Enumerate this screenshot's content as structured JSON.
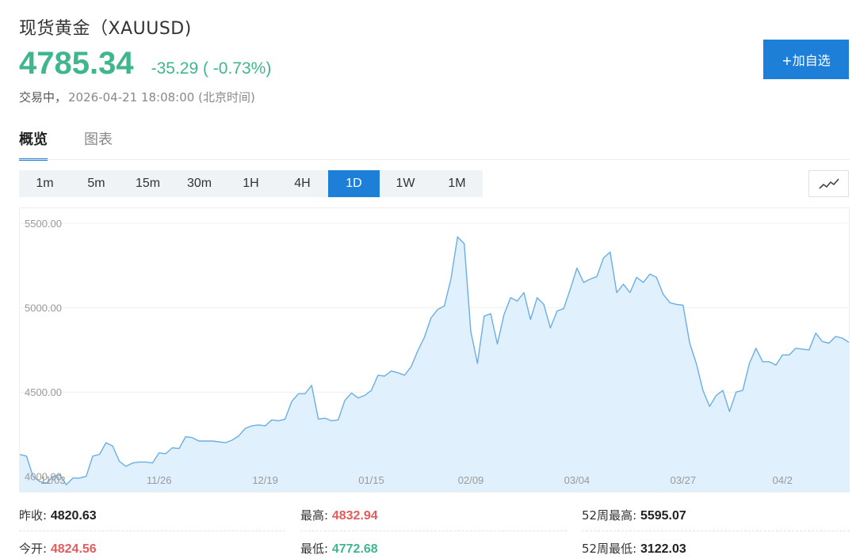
{
  "header": {
    "title": "现货黄金（XAUUSD)",
    "price": "4785.34",
    "change": "-35.29 ( -0.73%)",
    "status": "交易中，",
    "time": "2026-04-21 18:08:00 (北京时间)",
    "add_label": "+加自选"
  },
  "tabs": [
    {
      "label": "概览",
      "active": true
    },
    {
      "label": "图表",
      "active": false
    }
  ],
  "periods": [
    {
      "label": "1m",
      "active": false
    },
    {
      "label": "5m",
      "active": false
    },
    {
      "label": "15m",
      "active": false
    },
    {
      "label": "30m",
      "active": false
    },
    {
      "label": "1H",
      "active": false
    },
    {
      "label": "4H",
      "active": false
    },
    {
      "label": "1D",
      "active": true
    },
    {
      "label": "1W",
      "active": false
    },
    {
      "label": "1M",
      "active": false
    }
  ],
  "chart_type_icon": "line-chart-icon",
  "colors": {
    "accent": "#1e7fd8",
    "down": "#3fb68e",
    "up": "#e25d5d",
    "line": "#6aaee6",
    "fill": "#ddeefc"
  },
  "stats": {
    "prev_close_label": "昨收:",
    "prev_close": "4820.63",
    "high_label": "最高:",
    "high": "4832.94",
    "week52_high_label": "52周最高:",
    "week52_high": "5595.07",
    "open_label": "今开:",
    "open": "4824.56",
    "low_label": "最低:",
    "low": "4772.68",
    "week52_low_label": "52周最低:",
    "week52_low": "3122.03"
  },
  "chart_data": {
    "type": "area",
    "ylim": [
      3900,
      5590
    ],
    "yticks": [
      4000,
      4500,
      5000,
      5500
    ],
    "ytick_labels": [
      "4000.00",
      "4500.00",
      "5000.00",
      "5500.00"
    ],
    "xtick_labels": [
      "11/03",
      "11/26",
      "12/19",
      "01/15",
      "02/09",
      "03/04",
      "03/27",
      "04/2"
    ],
    "xtick_index": [
      5,
      21,
      37,
      53,
      68,
      84,
      100,
      115
    ],
    "grid": true,
    "series": [
      {
        "values": [
          4130,
          4120,
          4000,
          3970,
          3960,
          4000,
          4010,
          3950,
          3990,
          3990,
          4000,
          4120,
          4130,
          4200,
          4180,
          4090,
          4060,
          4080,
          4085,
          4085,
          4080,
          4140,
          4135,
          4170,
          4165,
          4235,
          4230,
          4210,
          4210,
          4210,
          4205,
          4200,
          4215,
          4240,
          4285,
          4300,
          4305,
          4300,
          4335,
          4330,
          4340,
          4445,
          4490,
          4490,
          4540,
          4340,
          4345,
          4330,
          4335,
          4450,
          4495,
          4465,
          4480,
          4510,
          4600,
          4595,
          4625,
          4615,
          4600,
          4650,
          4745,
          4825,
          4940,
          4990,
          5010,
          5170,
          5420,
          5380,
          4860,
          4670,
          4950,
          4965,
          4785,
          4960,
          5060,
          5040,
          5090,
          4930,
          5060,
          5020,
          4880,
          4980,
          4995,
          5110,
          5235,
          5150,
          5170,
          5185,
          5295,
          5330,
          5090,
          5140,
          5090,
          5180,
          5150,
          5200,
          5180,
          5080,
          5030,
          5020,
          5015,
          4790,
          4670,
          4510,
          4415,
          4480,
          4510,
          4385,
          4500,
          4510,
          4670,
          4760,
          4680,
          4680,
          4660,
          4720,
          4720,
          4760,
          4755,
          4750,
          4850,
          4800,
          4790,
          4830,
          4820,
          4795
        ]
      }
    ]
  }
}
